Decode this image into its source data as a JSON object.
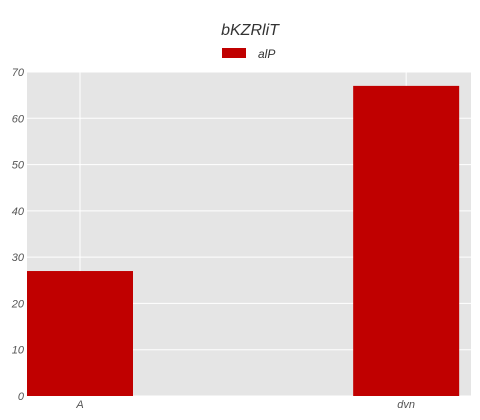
{
  "chart_data": {
    "type": "bar",
    "title": "bKZRliT",
    "categories": [
      "A",
      "dvn"
    ],
    "series": [
      {
        "name": "alP",
        "values": [
          27,
          67
        ]
      }
    ],
    "xlabel": "",
    "ylabel": "",
    "ylim": [
      0,
      70
    ],
    "yticks": [
      0,
      10,
      20,
      30,
      40,
      50,
      60,
      70
    ],
    "grid": true,
    "legend_position": "top-center",
    "colors": {
      "bar": "#c00000",
      "plot_background": "#e5e5e5",
      "grid": "#ffffff"
    }
  }
}
